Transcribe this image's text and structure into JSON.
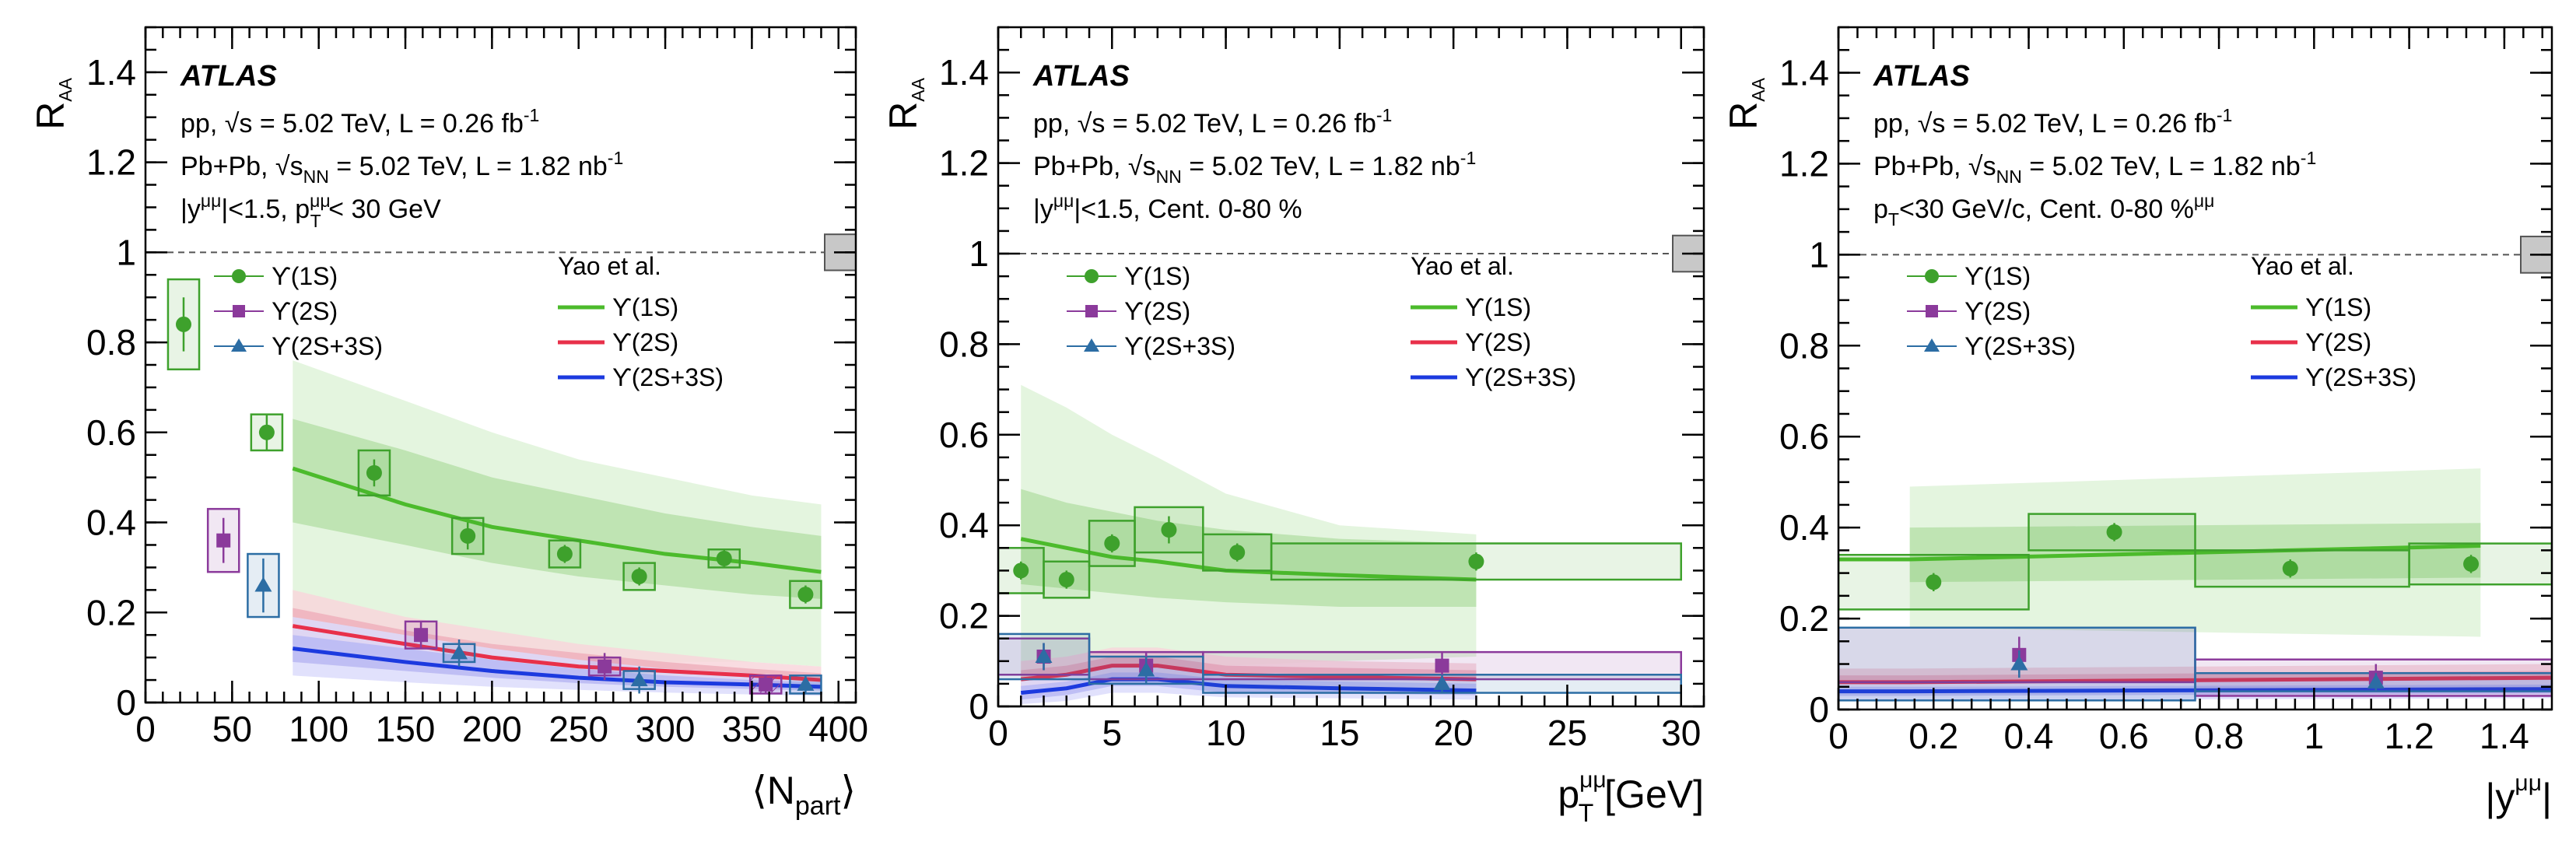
{
  "figure_title": "ATLAS Upsilon R_AA in Pb+Pb vs pp at 5.02 TeV",
  "colors": {
    "ups1s": "#3ea12c",
    "ups2s": "#8b3a9b",
    "ups23s": "#2c6da4",
    "yao_1s": "#4cbb2c",
    "yao_2s": "#e8304a",
    "yao_23s": "#1c3adf",
    "band1s_outer": "#e4f5df",
    "band1s_inner": "#bfe4b3",
    "band2s_outer": "#f8d6dc",
    "band2s_inner": "#efb0bc",
    "band23s_outer": "#dcdcfb",
    "band23s_inner": "#b8b8f3",
    "norm_box": "#c8c8c8"
  },
  "chart_data": [
    {
      "type": "scatter",
      "panel": "npart",
      "title": "R_AA vs <N_part>",
      "xlabel": "⟨N",
      "xlabel_sub": "part",
      "xlabel_end": "⟩",
      "ylabel": "R",
      "ylabel_sub": "AA",
      "xlim": [
        0,
        410
      ],
      "ylim": [
        0,
        1.5
      ],
      "xticks": [
        0,
        50,
        100,
        150,
        200,
        250,
        300,
        350,
        400
      ],
      "yticks": [
        0,
        0.2,
        0.4,
        0.6,
        0.8,
        1.0,
        1.2,
        1.4
      ],
      "ytick_labels": [
        "0",
        "0.2",
        "0.4",
        "0.6",
        "0.8",
        "1",
        "1.2",
        "1.4"
      ],
      "experiment": "ATLAS",
      "info_lines": [
        {
          "pre": "pp, √s = 5.02 TeV, L = 0.26 fb",
          "sup": "-1"
        },
        {
          "pre": "Pb+Pb, √s",
          "sub": "NN",
          "post": " = 5.02 TeV, L = 1.82 nb",
          "sup": "-1"
        },
        {
          "pre": "|y",
          "sup": "μμ",
          "post": "|<1.5, p",
          "sub2": "T",
          "sup2": "μμ",
          "post2": " < 30 GeV"
        }
      ],
      "legend_data": [
        "ϒ(1S)",
        "ϒ(2S)",
        "ϒ(2S+3S)"
      ],
      "legend_theory_title": "Yao et al.",
      "legend_theory": [
        "ϒ(1S)",
        "ϒ(2S)",
        "ϒ(2S+3S)"
      ],
      "norm_uncertainty": [
        0.96,
        1.04
      ],
      "series": [
        {
          "name": "ϒ(1S)",
          "marker": "circle",
          "color_key": "ups1s",
          "x": [
            22,
            70,
            132,
            186,
            242,
            285,
            334,
            381
          ],
          "y": [
            0.84,
            0.6,
            0.51,
            0.37,
            0.33,
            0.28,
            0.32,
            0.24
          ],
          "stat": [
            0.06,
            0.04,
            0.03,
            0.03,
            0.02,
            0.02,
            0.02,
            0.02
          ],
          "syst": [
            0.1,
            0.04,
            0.05,
            0.04,
            0.03,
            0.03,
            0.02,
            0.03
          ],
          "xw": [
            9,
            9,
            9,
            9,
            9,
            9,
            9,
            9
          ]
        },
        {
          "name": "ϒ(2S)",
          "marker": "square",
          "color_key": "ups2s",
          "x": [
            45,
            159,
            265,
            358
          ],
          "y": [
            0.36,
            0.15,
            0.08,
            0.04
          ],
          "stat": [
            0.05,
            0.03,
            0.03,
            0.02
          ],
          "syst": [
            0.07,
            0.03,
            0.02,
            0.02
          ],
          "xw": [
            9,
            9,
            9,
            9
          ]
        },
        {
          "name": "ϒ(2S+3S)",
          "marker": "triangle",
          "color_key": "ups23s",
          "x": [
            68,
            181,
            285,
            381
          ],
          "y": [
            0.26,
            0.11,
            0.05,
            0.04
          ],
          "stat": [
            0.06,
            0.03,
            0.03,
            0.02
          ],
          "syst": [
            0.07,
            0.02,
            0.02,
            0.02
          ],
          "xw": [
            9,
            9,
            9,
            9
          ]
        }
      ],
      "theory": [
        {
          "name": "ϒ(1S)",
          "color_key": "yao_1s",
          "x": [
            85,
            150,
            200,
            250,
            300,
            350,
            390
          ],
          "y": [
            0.52,
            0.44,
            0.39,
            0.36,
            0.33,
            0.31,
            0.29
          ],
          "inner_lo": [
            0.4,
            0.35,
            0.31,
            0.28,
            0.26,
            0.24,
            0.23
          ],
          "inner_hi": [
            0.63,
            0.56,
            0.5,
            0.46,
            0.42,
            0.39,
            0.37
          ],
          "outer_lo": [
            0.15,
            0.12,
            0.11,
            0.1,
            0.09,
            0.09,
            0.08
          ],
          "outer_hi": [
            0.76,
            0.67,
            0.6,
            0.54,
            0.5,
            0.46,
            0.44
          ]
        },
        {
          "name": "ϒ(2S)",
          "color_key": "yao_2s",
          "x": [
            85,
            150,
            200,
            250,
            300,
            350,
            390
          ],
          "y": [
            0.17,
            0.13,
            0.1,
            0.08,
            0.07,
            0.06,
            0.05
          ],
          "inner_lo": [
            0.13,
            0.1,
            0.08,
            0.065,
            0.055,
            0.045,
            0.04
          ],
          "inner_hi": [
            0.21,
            0.16,
            0.13,
            0.11,
            0.09,
            0.075,
            0.065
          ],
          "outer_lo": [
            0.09,
            0.07,
            0.055,
            0.045,
            0.035,
            0.03,
            0.025
          ],
          "outer_hi": [
            0.25,
            0.19,
            0.16,
            0.13,
            0.11,
            0.09,
            0.08
          ]
        },
        {
          "name": "ϒ(2S+3S)",
          "color_key": "yao_23s",
          "x": [
            85,
            150,
            200,
            250,
            300,
            350,
            390
          ],
          "y": [
            0.12,
            0.09,
            0.07,
            0.055,
            0.045,
            0.04,
            0.035
          ],
          "inner_lo": [
            0.09,
            0.07,
            0.055,
            0.043,
            0.035,
            0.03,
            0.027
          ],
          "inner_hi": [
            0.15,
            0.12,
            0.095,
            0.075,
            0.06,
            0.05,
            0.045
          ],
          "outer_lo": [
            0.06,
            0.045,
            0.035,
            0.028,
            0.022,
            0.018,
            0.015
          ],
          "outer_hi": [
            0.19,
            0.15,
            0.12,
            0.095,
            0.075,
            0.065,
            0.055
          ]
        }
      ]
    },
    {
      "type": "scatter",
      "panel": "pt",
      "title": "R_AA vs pT",
      "xlabel": "p",
      "xlabel_sub": "T",
      "xlabel_sup": "μμ",
      "xlabel_end": " [GeV]",
      "ylabel": "R",
      "ylabel_sub": "AA",
      "xlim": [
        0,
        31
      ],
      "ylim": [
        0,
        1.5
      ],
      "xticks": [
        0,
        5,
        10,
        15,
        20,
        25,
        30
      ],
      "yticks": [
        0,
        0.2,
        0.4,
        0.6,
        0.8,
        1.0,
        1.2,
        1.4
      ],
      "ytick_labels": [
        "0",
        "0.2",
        "0.4",
        "0.6",
        "0.8",
        "1",
        "1.2",
        "1.4"
      ],
      "experiment": "ATLAS",
      "info_lines": [
        {
          "pre": "pp, √s = 5.02 TeV, L = 0.26 fb",
          "sup": "-1"
        },
        {
          "pre": "Pb+Pb, √s",
          "sub": "NN",
          "post": " = 5.02 TeV, L = 1.82 nb",
          "sup": "-1"
        },
        {
          "pre": "|y",
          "sup": "μμ",
          "post": "|<1.5, Cent. 0-80 %"
        }
      ],
      "legend_data": [
        "ϒ(1S)",
        "ϒ(2S)",
        "ϒ(2S+3S)"
      ],
      "legend_theory_title": "Yao et al.",
      "legend_theory": [
        "ϒ(1S)",
        "ϒ(2S)",
        "ϒ(2S+3S)"
      ],
      "norm_uncertainty": [
        0.96,
        1.04
      ],
      "series": [
        {
          "name": "ϒ(1S)",
          "marker": "circle",
          "color_key": "ups1s",
          "x": [
            1,
            3,
            5,
            7.5,
            10.5,
            21
          ],
          "y": [
            0.3,
            0.28,
            0.36,
            0.39,
            0.34,
            0.32
          ],
          "stat": [
            0.02,
            0.02,
            0.02,
            0.03,
            0.02,
            0.02
          ],
          "syst": [
            0.05,
            0.04,
            0.05,
            0.05,
            0.04,
            0.04
          ],
          "xlo": [
            0,
            2,
            4,
            6,
            9,
            12
          ],
          "xhi": [
            2,
            4,
            6,
            9,
            12,
            30
          ]
        },
        {
          "name": "ϒ(2S)",
          "marker": "square",
          "color_key": "ups2s",
          "x": [
            2,
            6.5,
            19.5
          ],
          "y": [
            0.11,
            0.09,
            0.09
          ],
          "stat": [
            0.03,
            0.03,
            0.03
          ],
          "syst": [
            0.04,
            0.03,
            0.03
          ],
          "xlo": [
            0,
            4,
            9
          ],
          "xhi": [
            4,
            9,
            30
          ]
        },
        {
          "name": "ϒ(2S+3S)",
          "marker": "triangle",
          "color_key": "ups23s",
          "x": [
            2,
            6.5,
            19.5
          ],
          "y": [
            0.11,
            0.08,
            0.05
          ],
          "stat": [
            0.03,
            0.03,
            0.02
          ],
          "syst": [
            0.05,
            0.03,
            0.02
          ],
          "xlo": [
            0,
            4,
            9
          ],
          "xhi": [
            4,
            9,
            30
          ]
        }
      ],
      "theory": [
        {
          "name": "ϒ(1S)",
          "color_key": "yao_1s",
          "x": [
            1,
            3,
            5,
            7,
            10,
            15,
            21
          ],
          "y": [
            0.37,
            0.35,
            0.33,
            0.32,
            0.3,
            0.29,
            0.28
          ],
          "inner_lo": [
            0.27,
            0.26,
            0.25,
            0.24,
            0.23,
            0.22,
            0.22
          ],
          "inner_hi": [
            0.48,
            0.45,
            0.43,
            0.41,
            0.39,
            0.37,
            0.36
          ],
          "outer_lo": [
            0.05,
            0.06,
            0.07,
            0.08,
            0.09,
            0.1,
            0.11
          ],
          "outer_hi": [
            0.71,
            0.66,
            0.6,
            0.55,
            0.47,
            0.4,
            0.38
          ]
        },
        {
          "name": "ϒ(2S)",
          "color_key": "yao_2s",
          "x": [
            1,
            3,
            5,
            7,
            10,
            15,
            21
          ],
          "y": [
            0.06,
            0.07,
            0.09,
            0.09,
            0.07,
            0.065,
            0.06
          ],
          "inner_lo": [
            0.04,
            0.05,
            0.07,
            0.07,
            0.055,
            0.05,
            0.045
          ],
          "inner_hi": [
            0.08,
            0.09,
            0.11,
            0.11,
            0.09,
            0.085,
            0.08
          ],
          "outer_lo": [
            0.02,
            0.03,
            0.05,
            0.05,
            0.04,
            0.035,
            0.03
          ],
          "outer_hi": [
            0.1,
            0.11,
            0.13,
            0.13,
            0.11,
            0.1,
            0.095
          ]
        },
        {
          "name": "ϒ(2S+3S)",
          "color_key": "yao_23s",
          "x": [
            1,
            3,
            5,
            7,
            10,
            15,
            21
          ],
          "y": [
            0.03,
            0.04,
            0.06,
            0.06,
            0.045,
            0.04,
            0.035
          ],
          "inner_lo": [
            0.015,
            0.025,
            0.045,
            0.045,
            0.03,
            0.028,
            0.025
          ],
          "inner_hi": [
            0.045,
            0.055,
            0.075,
            0.075,
            0.06,
            0.055,
            0.05
          ],
          "outer_lo": [
            0.005,
            0.012,
            0.03,
            0.03,
            0.02,
            0.018,
            0.015
          ],
          "outer_hi": [
            0.06,
            0.07,
            0.09,
            0.09,
            0.075,
            0.07,
            0.065
          ]
        }
      ]
    },
    {
      "type": "scatter",
      "panel": "rapidity",
      "title": "R_AA vs |y|",
      "xlabel": "|y",
      "xlabel_sup": "μμ",
      "xlabel_end": "|",
      "ylabel": "R",
      "ylabel_sub": "AA",
      "xlim": [
        0,
        1.5
      ],
      "ylim": [
        0,
        1.5
      ],
      "xticks": [
        0,
        0.2,
        0.4,
        0.6,
        0.8,
        1.0,
        1.2,
        1.4
      ],
      "xtick_labels": [
        "0",
        "0.2",
        "0.4",
        "0.6",
        "0.8",
        "1",
        "1.2",
        "1.4"
      ],
      "yticks": [
        0,
        0.2,
        0.4,
        0.6,
        0.8,
        1.0,
        1.2,
        1.4
      ],
      "ytick_labels": [
        "0",
        "0.2",
        "0.4",
        "0.6",
        "0.8",
        "1",
        "1.2",
        "1.4"
      ],
      "experiment": "ATLAS",
      "info_lines": [
        {
          "pre": "pp, √s = 5.02 TeV, L = 0.26 fb",
          "sup": "-1"
        },
        {
          "pre": "Pb+Pb, √s",
          "sub": "NN",
          "post": " = 5.02 TeV, L = 1.82 nb",
          "sup": "-1"
        },
        {
          "pre": "p",
          "sub": "T",
          "sup": "μμ",
          "post": "<30 GeV/c, Cent. 0-80 %"
        }
      ],
      "legend_data": [
        "ϒ(1S)",
        "ϒ(2S)",
        "ϒ(2S+3S)"
      ],
      "legend_theory_title": "Yao et al.",
      "legend_theory": [
        "ϒ(1S)",
        "ϒ(2S)",
        "ϒ(2S+3S)"
      ],
      "norm_uncertainty": [
        0.96,
        1.04
      ],
      "series": [
        {
          "name": "ϒ(1S)",
          "marker": "circle",
          "color_key": "ups1s",
          "x": [
            0.2,
            0.58,
            0.95,
            1.33
          ],
          "y": [
            0.28,
            0.39,
            0.31,
            0.32
          ],
          "stat": [
            0.02,
            0.02,
            0.02,
            0.02
          ],
          "syst": [
            0.06,
            0.04,
            0.04,
            0.045
          ],
          "xlo": [
            0,
            0.4,
            0.75,
            1.2
          ],
          "xhi": [
            0.4,
            0.75,
            1.2,
            1.5
          ]
        },
        {
          "name": "ϒ(2S)",
          "marker": "square",
          "color_key": "ups2s",
          "x": [
            0.38,
            1.13
          ],
          "y": [
            0.12,
            0.07
          ],
          "stat": [
            0.04,
            0.03
          ],
          "syst": [
            0.06,
            0.04
          ],
          "xlo": [
            0,
            0.75
          ],
          "xhi": [
            0.75,
            1.5
          ]
        },
        {
          "name": "ϒ(2S+3S)",
          "marker": "triangle",
          "color_key": "ups23s",
          "x": [
            0.38,
            1.13
          ],
          "y": [
            0.1,
            0.06
          ],
          "stat": [
            0.03,
            0.02
          ],
          "syst": [
            0.08,
            0.02
          ],
          "xlo": [
            0,
            0.75
          ],
          "xhi": [
            0.75,
            1.5
          ]
        }
      ],
      "theory": [
        {
          "name": "ϒ(1S)",
          "color_key": "yao_1s",
          "x": [
            0.0,
            0.15,
            1.35
          ],
          "y": [
            0.33,
            0.33,
            0.36
          ],
          "inner_lo": [
            0.28,
            0.28,
            0.29
          ],
          "inner_hi": [
            0.4,
            0.4,
            0.41
          ],
          "outer_lo": [
            0.18,
            0.18,
            0.16
          ],
          "outer_hi": [
            0.49,
            0.49,
            0.53
          ],
          "band_from": 1
        },
        {
          "name": "ϒ(2S)",
          "color_key": "yao_2s",
          "x": [
            0.0,
            0.15,
            1.5
          ],
          "y": [
            0.06,
            0.06,
            0.07
          ],
          "inner_lo": [
            0.045,
            0.045,
            0.05
          ],
          "inner_hi": [
            0.075,
            0.075,
            0.085
          ],
          "outer_lo": [
            0.03,
            0.03,
            0.035
          ],
          "outer_hi": [
            0.09,
            0.09,
            0.1
          ],
          "band_from": 0
        },
        {
          "name": "ϒ(2S+3S)",
          "color_key": "yao_23s",
          "x": [
            0.0,
            0.15,
            1.5
          ],
          "y": [
            0.04,
            0.04,
            0.045
          ],
          "inner_lo": [
            0.03,
            0.03,
            0.035
          ],
          "inner_hi": [
            0.05,
            0.05,
            0.055
          ],
          "outer_lo": [
            0.02,
            0.02,
            0.025
          ],
          "outer_hi": [
            0.06,
            0.06,
            0.065
          ],
          "band_from": 0
        }
      ]
    }
  ]
}
